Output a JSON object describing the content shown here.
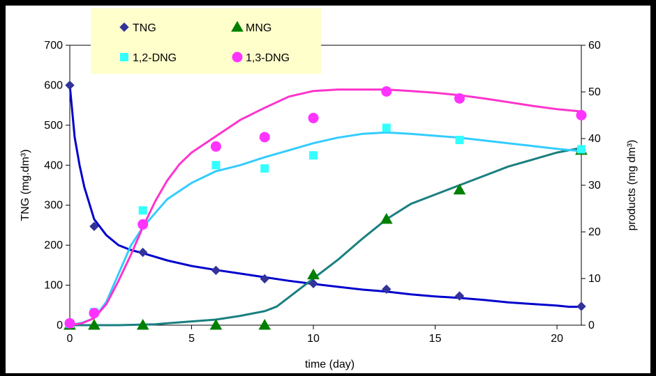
{
  "chart_data": {
    "type": "line",
    "x_axis": {
      "label": "time (day)",
      "range": [
        0,
        21
      ],
      "ticks": [
        0,
        5,
        10,
        15,
        20
      ]
    },
    "y_left": {
      "label": "TNG (mg.dm³)",
      "range": [
        0,
        700
      ],
      "ticks": [
        0,
        100,
        200,
        300,
        400,
        500,
        600,
        700
      ]
    },
    "y_right": {
      "label": "products (mg dm³)",
      "range": [
        0,
        60
      ],
      "ticks": [
        0,
        10,
        20,
        30,
        40,
        50,
        60
      ]
    },
    "legend": {
      "placement": "top-left",
      "background": "#ffffcc"
    },
    "grid": false,
    "series": [
      {
        "name": "TNG",
        "axis": "left",
        "color": "#0000cc",
        "marker": "diamond",
        "marker_color": "#333399",
        "points": [
          [
            0,
            600
          ],
          [
            1,
            247
          ],
          [
            3,
            182
          ],
          [
            6,
            137
          ],
          [
            8,
            116
          ],
          [
            10,
            104
          ],
          [
            13,
            90
          ],
          [
            16,
            73
          ],
          [
            21,
            47
          ]
        ],
        "curve": [
          [
            0,
            600
          ],
          [
            0.2,
            470
          ],
          [
            0.4,
            400
          ],
          [
            0.6,
            345
          ],
          [
            0.8,
            305
          ],
          [
            1,
            265
          ],
          [
            1.5,
            225
          ],
          [
            2,
            200
          ],
          [
            2.5,
            188
          ],
          [
            3,
            180
          ],
          [
            4,
            162
          ],
          [
            5,
            148
          ],
          [
            6,
            138
          ],
          [
            7,
            129
          ],
          [
            8,
            120
          ],
          [
            9,
            111
          ],
          [
            10,
            103
          ],
          [
            11,
            96
          ],
          [
            12,
            89
          ],
          [
            13,
            84
          ],
          [
            14,
            77
          ],
          [
            15,
            72
          ],
          [
            16,
            68
          ],
          [
            17,
            63
          ],
          [
            18,
            57
          ],
          [
            19,
            53
          ],
          [
            20,
            49
          ],
          [
            20.5,
            46
          ],
          [
            21,
            46
          ]
        ]
      },
      {
        "name": "MNG",
        "axis": "right",
        "color": "#1a7f7f",
        "marker": "triangle",
        "marker_color": "#008000",
        "points": [
          [
            0,
            0
          ],
          [
            1,
            0
          ],
          [
            3,
            0
          ],
          [
            6,
            0
          ],
          [
            8,
            0
          ],
          [
            10,
            10.8
          ],
          [
            13,
            22.7
          ],
          [
            16,
            29
          ],
          [
            21,
            37.5
          ]
        ],
        "curve": [
          [
            0,
            0
          ],
          [
            2,
            0
          ],
          [
            3.5,
            0.2
          ],
          [
            4,
            0.4
          ],
          [
            5,
            0.8
          ],
          [
            6,
            1.2
          ],
          [
            7,
            2
          ],
          [
            8,
            3
          ],
          [
            8.5,
            4
          ],
          [
            9,
            6
          ],
          [
            10,
            10
          ],
          [
            11,
            14
          ],
          [
            12,
            18.5
          ],
          [
            13,
            22.7
          ],
          [
            14,
            26
          ],
          [
            15,
            28
          ],
          [
            16,
            30
          ],
          [
            17,
            32
          ],
          [
            18,
            34
          ],
          [
            19,
            35.5
          ],
          [
            20,
            37
          ],
          [
            21,
            38
          ]
        ]
      },
      {
        "name": "1,2-DNG",
        "axis": "right",
        "color": "#33ccff",
        "marker": "square",
        "marker_color": "#33ffff",
        "points": [
          [
            0,
            0.3
          ],
          [
            1,
            2.8
          ],
          [
            3,
            24.6
          ],
          [
            6,
            34.3
          ],
          [
            8,
            33.6
          ],
          [
            10,
            36.4
          ],
          [
            13,
            42.3
          ],
          [
            16,
            39.7
          ],
          [
            21,
            37.7
          ]
        ],
        "curve": [
          [
            0,
            0
          ],
          [
            0.5,
            0.5
          ],
          [
            1,
            1.5
          ],
          [
            1.5,
            5
          ],
          [
            2,
            11
          ],
          [
            2.5,
            17
          ],
          [
            3,
            21
          ],
          [
            3.5,
            24
          ],
          [
            4,
            27
          ],
          [
            5,
            30.5
          ],
          [
            6,
            33
          ],
          [
            7,
            34.3
          ],
          [
            8,
            36
          ],
          [
            9,
            37.5
          ],
          [
            10,
            39
          ],
          [
            11,
            40.2
          ],
          [
            12,
            41
          ],
          [
            13,
            41.3
          ],
          [
            14,
            41
          ],
          [
            15,
            40.6
          ],
          [
            16,
            40.2
          ],
          [
            17,
            39.6
          ],
          [
            18,
            39
          ],
          [
            19,
            38.4
          ],
          [
            20,
            37.8
          ],
          [
            21,
            37.3
          ]
        ]
      },
      {
        "name": "1,3-DNG",
        "axis": "right",
        "color": "#ff33cc",
        "marker": "circle",
        "marker_color": "#ff33ff",
        "points": [
          [
            0,
            0.4
          ],
          [
            1,
            2.6
          ],
          [
            3,
            21.6
          ],
          [
            6,
            38.3
          ],
          [
            8,
            40.3
          ],
          [
            10,
            44.4
          ],
          [
            13,
            50.1
          ],
          [
            16,
            48.6
          ],
          [
            21,
            45
          ]
        ],
        "curve": [
          [
            0,
            0
          ],
          [
            0.5,
            0.4
          ],
          [
            1,
            1.5
          ],
          [
            1.5,
            4.5
          ],
          [
            2,
            9.5
          ],
          [
            2.5,
            15
          ],
          [
            3,
            21
          ],
          [
            3.5,
            26.5
          ],
          [
            4,
            31
          ],
          [
            4.5,
            34.5
          ],
          [
            5,
            37
          ],
          [
            6,
            40.5
          ],
          [
            7,
            44
          ],
          [
            8,
            46.6
          ],
          [
            9,
            49
          ],
          [
            10,
            50.2
          ],
          [
            11,
            50.5
          ],
          [
            12,
            50.5
          ],
          [
            13,
            50.5
          ],
          [
            14,
            50.2
          ],
          [
            15,
            49.8
          ],
          [
            16,
            49.3
          ],
          [
            17,
            48.6
          ],
          [
            18,
            47.8
          ],
          [
            19,
            47
          ],
          [
            20,
            46.3
          ],
          [
            21,
            45.8
          ]
        ]
      }
    ]
  }
}
